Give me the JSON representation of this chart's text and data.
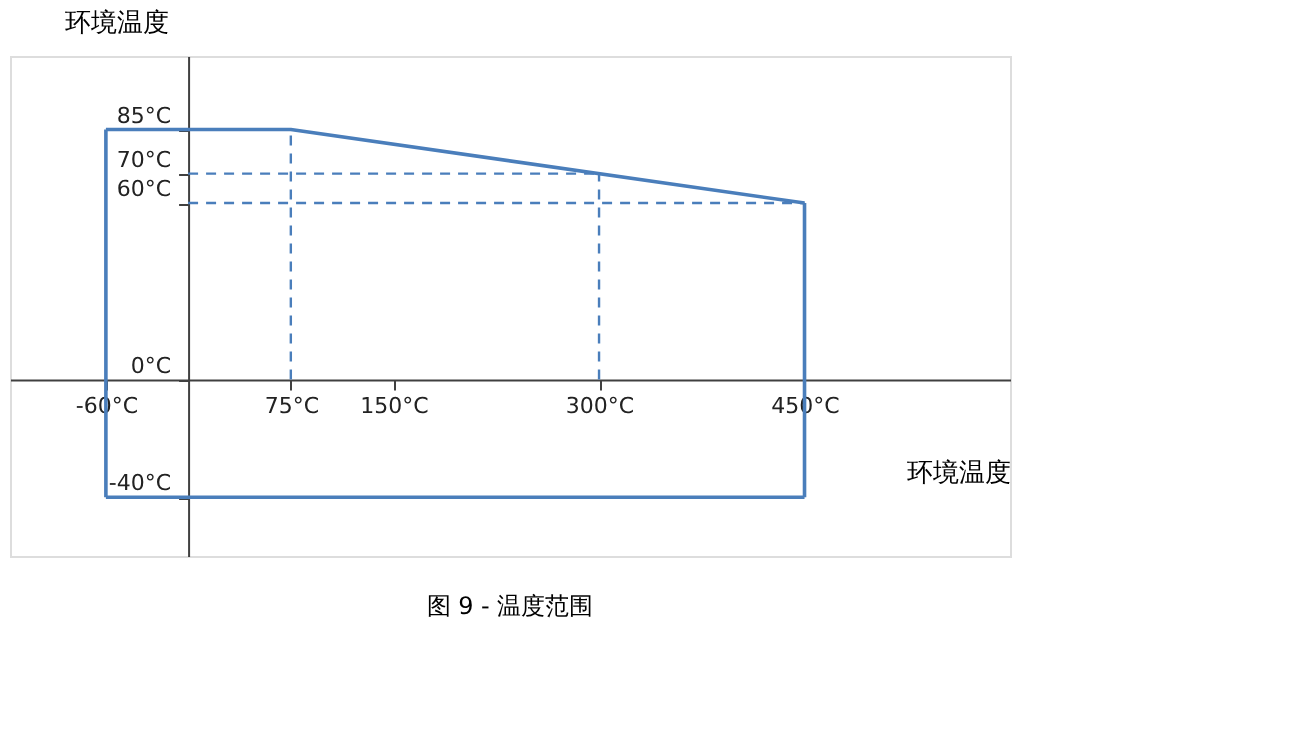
{
  "chart_data": {
    "type": "line",
    "title": "图 9 - 温度范围",
    "xlabel": "环境温度",
    "ylabel": "环境温度",
    "xlim": [
      -130,
      600
    ],
    "ylim": [
      -60,
      110
    ],
    "xticks": [
      {
        "value": -60,
        "label": "-60°C"
      },
      {
        "value": 75,
        "label": "75°C"
      },
      {
        "value": 150,
        "label": "150°C"
      },
      {
        "value": 300,
        "label": "300°C"
      },
      {
        "value": 450,
        "label": "450°C"
      }
    ],
    "yticks": [
      {
        "value": -40,
        "label": "-40°C"
      },
      {
        "value": 0,
        "label": "0°C"
      },
      {
        "value": 60,
        "label": "60°C"
      },
      {
        "value": 70,
        "label": "70°C"
      },
      {
        "value": 85,
        "label": "85°C"
      }
    ],
    "grid": false,
    "marker": "none",
    "series": [
      {
        "color": "#4a7ebb",
        "line_style": "solid",
        "x": [
          -60,
          75,
          450
        ],
        "values": [
          85,
          85,
          60
        ]
      },
      {
        "color": "#4a7ebb",
        "line_style": "solid",
        "x": [
          450,
          450
        ],
        "values": [
          60,
          -40
        ]
      },
      {
        "color": "#4a7ebb",
        "line_style": "solid",
        "x": [
          -60,
          450
        ],
        "values": [
          -40,
          -40
        ]
      },
      {
        "color": "#4a7ebb",
        "line_style": "solid",
        "x": [
          -60,
          -60
        ],
        "values": [
          -40,
          85
        ]
      },
      {
        "color": "#4a7ebb",
        "line_style": "dashed",
        "x": [
          75,
          75
        ],
        "values": [
          0,
          85
        ]
      },
      {
        "color": "#4a7ebb",
        "line_style": "dashed",
        "x": [
          300,
          300
        ],
        "values": [
          0,
          70
        ]
      },
      {
        "color": "#4a7ebb",
        "line_style": "dashed",
        "x": [
          0,
          300
        ],
        "values": [
          70,
          70
        ]
      },
      {
        "color": "#4a7ebb",
        "line_style": "dashed",
        "x": [
          0,
          450
        ],
        "values": [
          60,
          60
        ]
      }
    ]
  }
}
